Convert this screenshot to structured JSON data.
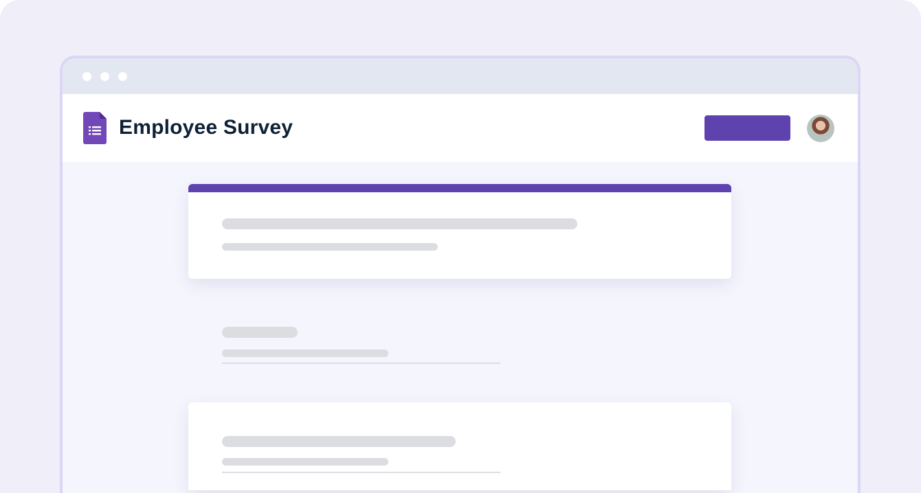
{
  "app": {
    "title": "Employee Survey",
    "icon": "google-forms-icon",
    "accent": "#5e42ad"
  },
  "header": {
    "primary_button_label": "",
    "avatar": "user-avatar"
  }
}
